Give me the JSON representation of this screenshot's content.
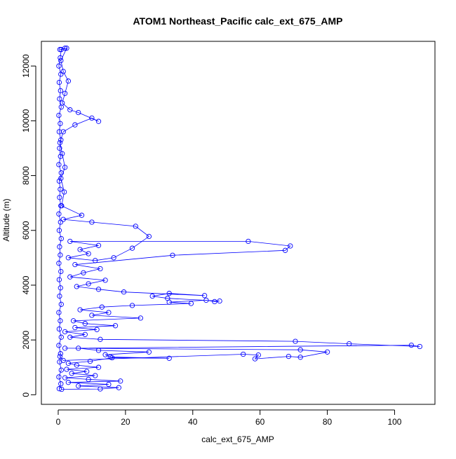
{
  "chart_data": {
    "type": "line",
    "title": "ATOM1 Northeast_Pacific calc_ext_675_AMP",
    "xlabel": "calc_ext_675_AMP",
    "ylabel": "Altitude (m)",
    "xlim": [
      -5,
      112
    ],
    "ylim": [
      -350,
      12900
    ],
    "xticks": [
      0,
      20,
      40,
      60,
      80,
      100
    ],
    "yticks": [
      0,
      2000,
      4000,
      6000,
      8000,
      10000,
      12000
    ],
    "grid": false,
    "legend": "none",
    "series_color": "#0000ff",
    "marker": "open-circle",
    "series": [
      {
        "points": [
          [
            1.0,
            200
          ],
          [
            12.5,
            210
          ],
          [
            18.0,
            260
          ],
          [
            6.0,
            320
          ],
          [
            15.0,
            380
          ],
          [
            3.0,
            450
          ],
          [
            18.5,
            500
          ],
          [
            9.0,
            560
          ],
          [
            2.0,
            620
          ],
          [
            11.0,
            700
          ],
          [
            4.0,
            780
          ],
          [
            8.5,
            850
          ],
          [
            2.5,
            930
          ],
          [
            12.0,
            1000
          ],
          [
            5.5,
            1080
          ],
          [
            3.0,
            1150
          ],
          [
            9.5,
            1220
          ],
          [
            16.0,
            1350
          ],
          [
            33.0,
            1330
          ],
          [
            15.5,
            1380
          ],
          [
            14.0,
            1460
          ],
          [
            27.0,
            1560
          ],
          [
            12.0,
            1620
          ],
          [
            6.0,
            1700
          ],
          [
            105.0,
            1810
          ],
          [
            107.5,
            1760
          ],
          [
            86.5,
            1860
          ],
          [
            70.5,
            1950
          ],
          [
            12.5,
            2020
          ],
          [
            3.5,
            2100
          ],
          [
            8.0,
            2200
          ],
          [
            2.0,
            2300
          ],
          [
            11.5,
            2380
          ],
          [
            5.0,
            2450
          ],
          [
            17.0,
            2520
          ],
          [
            8.0,
            2600
          ],
          [
            4.5,
            2700
          ],
          [
            24.5,
            2800
          ],
          [
            10.0,
            2900
          ],
          [
            15.0,
            3000
          ],
          [
            6.5,
            3100
          ],
          [
            13.0,
            3200
          ],
          [
            22.0,
            3260
          ],
          [
            39.5,
            3330
          ],
          [
            33.0,
            3380
          ],
          [
            44.0,
            3450
          ],
          [
            46.5,
            3400
          ],
          [
            48.0,
            3420
          ],
          [
            32.5,
            3520
          ],
          [
            28.0,
            3600
          ],
          [
            33.0,
            3700
          ],
          [
            43.5,
            3620
          ],
          [
            19.5,
            3750
          ],
          [
            12.0,
            3850
          ],
          [
            5.5,
            3950
          ],
          [
            9.0,
            4050
          ],
          [
            14.0,
            4180
          ],
          [
            3.5,
            4300
          ],
          [
            7.5,
            4450
          ],
          [
            12.5,
            4600
          ],
          [
            5.0,
            4750
          ],
          [
            34.0,
            5090
          ],
          [
            67.5,
            5270
          ],
          [
            69.0,
            5430
          ],
          [
            56.5,
            5600
          ],
          [
            3.5,
            5600
          ],
          [
            12.0,
            5450
          ],
          [
            6.5,
            5300
          ],
          [
            9.0,
            5150
          ],
          [
            3.0,
            5000
          ],
          [
            11.0,
            4900
          ],
          [
            16.5,
            5000
          ],
          [
            22.0,
            5350
          ],
          [
            27.0,
            5780
          ],
          [
            23.0,
            6150
          ],
          [
            10.0,
            6300
          ],
          [
            1.5,
            6400
          ],
          [
            7.0,
            6550
          ],
          [
            1.0,
            6900
          ],
          [
            1.8,
            7400
          ],
          [
            0.8,
            7900
          ],
          [
            2.0,
            8300
          ],
          [
            1.2,
            8800
          ],
          [
            0.5,
            9200
          ],
          [
            1.5,
            9600
          ],
          [
            5.0,
            9850
          ],
          [
            10.0,
            10100
          ],
          [
            12.0,
            9980
          ],
          [
            6.0,
            10300
          ],
          [
            3.5,
            10400
          ],
          [
            1.2,
            10650
          ],
          [
            2.0,
            11000
          ],
          [
            3.0,
            11450
          ],
          [
            1.5,
            11800
          ],
          [
            0.8,
            12200
          ],
          [
            2.5,
            12650
          ],
          [
            0.5,
            12600
          ]
        ]
      },
      {
        "points": [
          [
            0.5,
            1400
          ],
          [
            1.5,
            1250
          ],
          [
            55.0,
            1480
          ],
          [
            59.5,
            1450
          ],
          [
            58.5,
            1310
          ],
          [
            68.5,
            1400
          ],
          [
            72.0,
            1370
          ],
          [
            80.0,
            1560
          ],
          [
            72.0,
            1640
          ],
          [
            2.0,
            1700
          ]
        ]
      },
      {
        "points": [
          [
            0.3,
            220
          ],
          [
            0.8,
            400
          ],
          [
            0.2,
            650
          ],
          [
            0.9,
            900
          ],
          [
            0.4,
            1200
          ],
          [
            0.7,
            1500
          ],
          [
            0.2,
            1800
          ],
          [
            0.9,
            2100
          ],
          [
            0.3,
            2400
          ],
          [
            0.6,
            2700
          ],
          [
            0.2,
            3000
          ],
          [
            0.9,
            3300
          ],
          [
            0.4,
            3600
          ],
          [
            0.7,
            3900
          ],
          [
            0.3,
            4200
          ],
          [
            0.8,
            4500
          ],
          [
            0.2,
            4800
          ],
          [
            0.6,
            5100
          ],
          [
            0.4,
            5400
          ],
          [
            0.9,
            5700
          ],
          [
            0.3,
            6000
          ],
          [
            0.7,
            6300
          ],
          [
            0.2,
            6600
          ],
          [
            0.8,
            6900
          ],
          [
            0.4,
            7200
          ],
          [
            0.6,
            7500
          ],
          [
            0.3,
            7800
          ],
          [
            0.9,
            8100
          ],
          [
            0.2,
            8400
          ],
          [
            0.7,
            8700
          ],
          [
            0.4,
            9000
          ],
          [
            0.8,
            9300
          ],
          [
            0.3,
            9600
          ],
          [
            0.6,
            9900
          ],
          [
            0.2,
            10200
          ],
          [
            0.9,
            10500
          ],
          [
            0.4,
            10800
          ],
          [
            0.7,
            11100
          ],
          [
            0.3,
            11400
          ],
          [
            0.8,
            11700
          ],
          [
            0.2,
            12000
          ],
          [
            0.6,
            12300
          ],
          [
            0.9,
            12600
          ],
          [
            2.0,
            12650
          ]
        ]
      }
    ]
  }
}
